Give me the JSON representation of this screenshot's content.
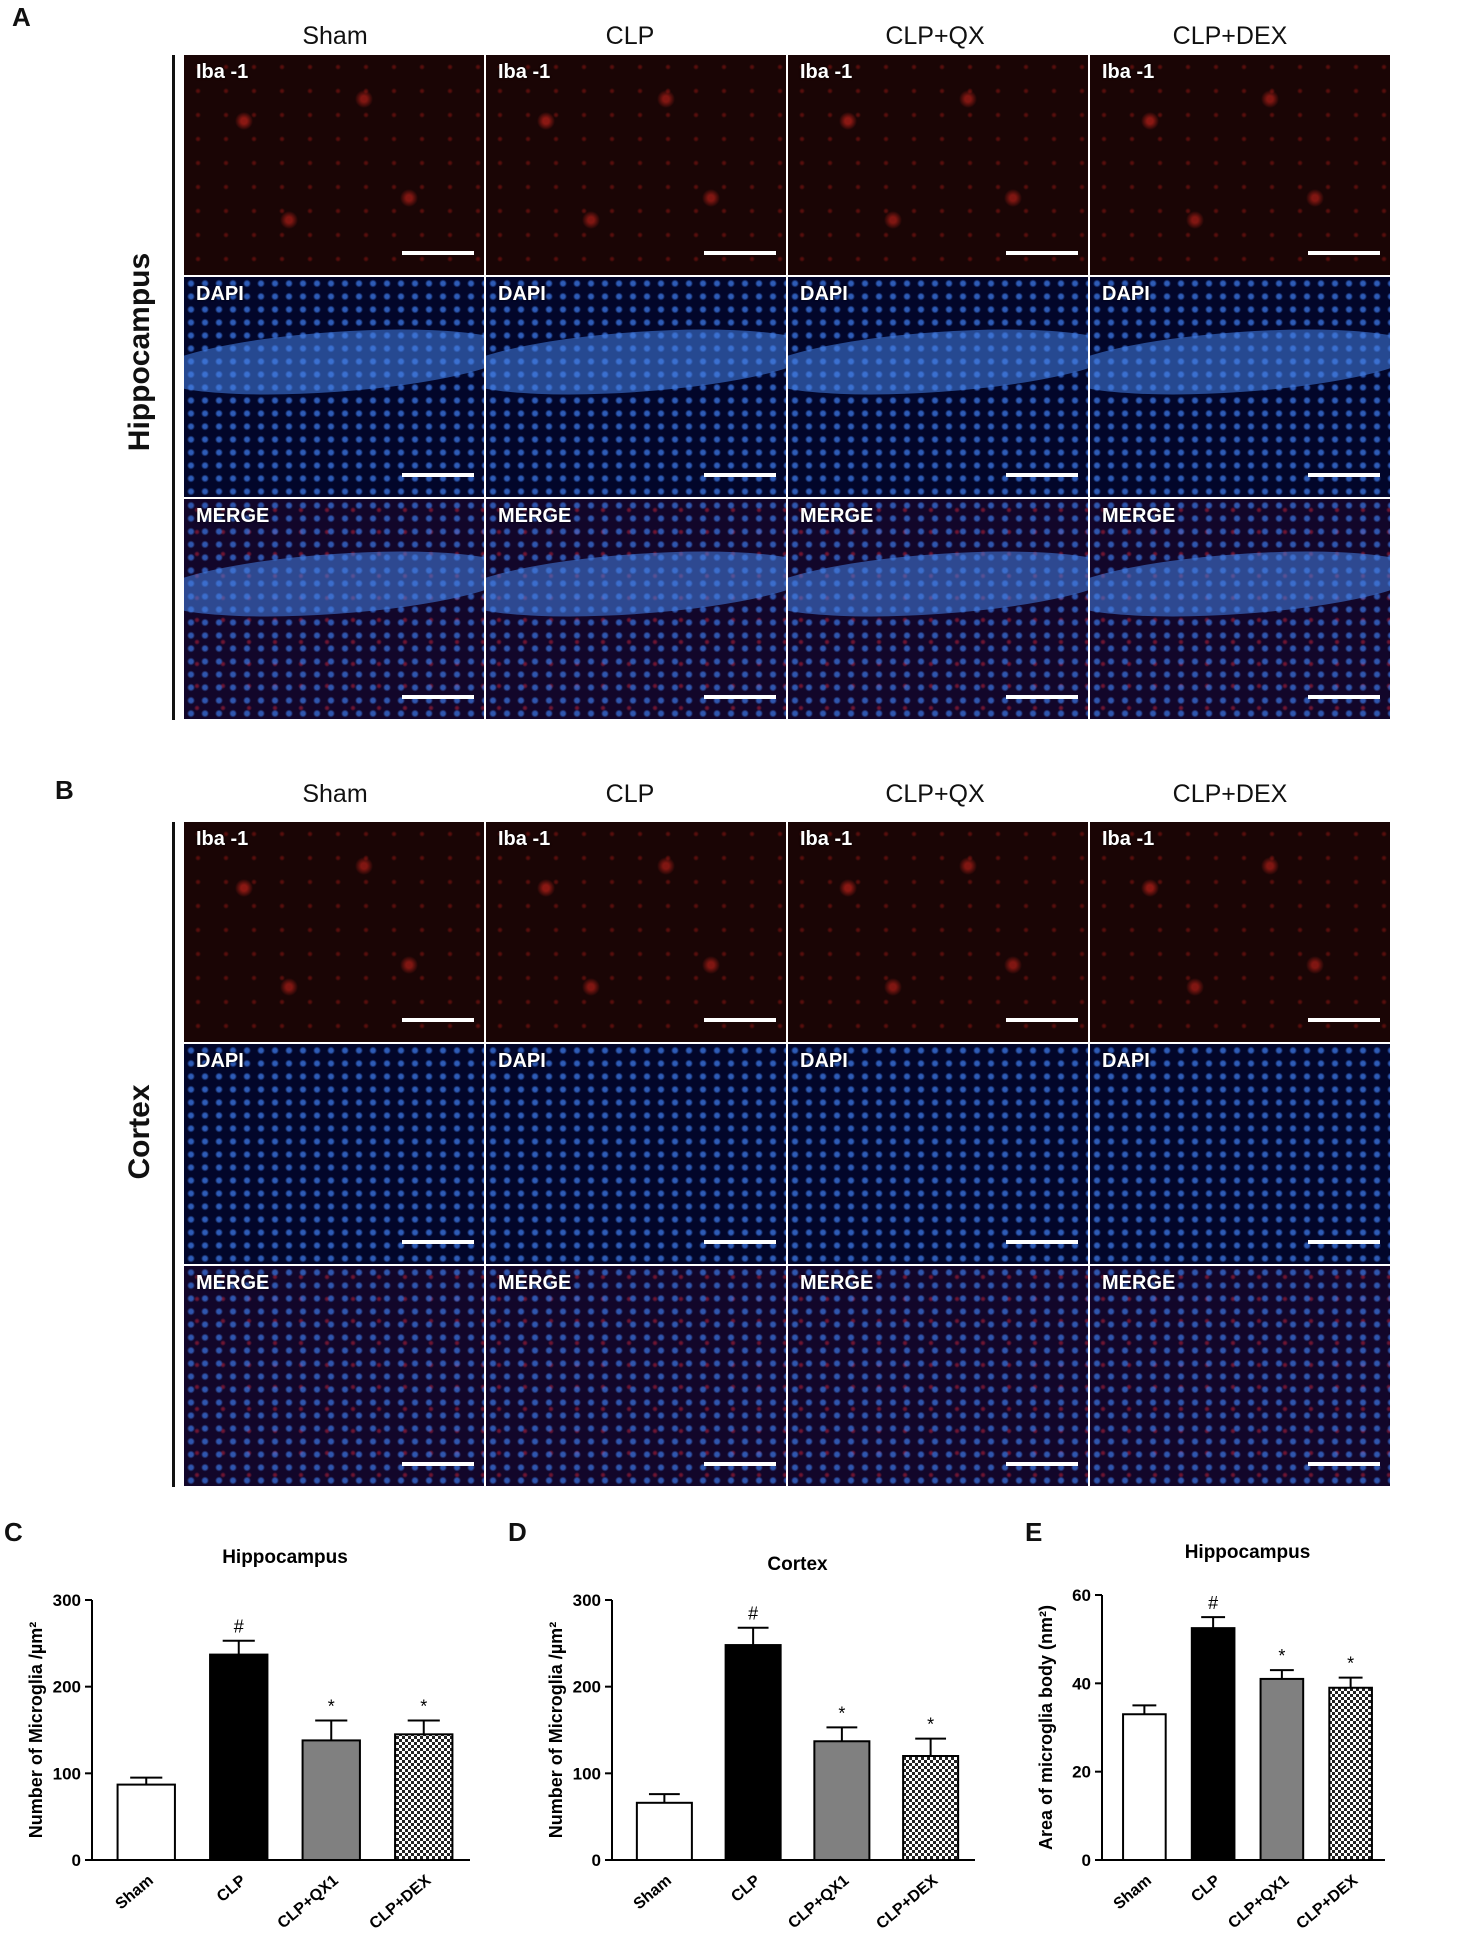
{
  "panels": {
    "a": {
      "letter": "A",
      "row_title": "Hippocampus"
    },
    "b": {
      "letter": "B",
      "row_title": "Cortex"
    },
    "c": {
      "letter": "C"
    },
    "d": {
      "letter": "D"
    },
    "e": {
      "letter": "E"
    }
  },
  "columns": [
    "Sham",
    "CLP",
    "CLP+QX",
    "CLP+DEX"
  ],
  "stain_labels": {
    "iba": "Iba -1",
    "dapi": "DAPI",
    "merge": "MERGE"
  },
  "chart_data": [
    {
      "type": "bar",
      "title": "Hippocampus",
      "ylabel": "Number of Microglia /µm²",
      "categories": [
        "Sham",
        "CLP",
        "CLP+QX1",
        "CLP+DEX"
      ],
      "values": [
        87,
        237,
        138,
        145
      ],
      "errors": [
        8,
        16,
        23,
        16
      ],
      "annotations": [
        "",
        "#",
        "*",
        "*"
      ],
      "fills": [
        "#ffffff",
        "#000000",
        "#808080",
        "checker"
      ],
      "ylim": [
        0,
        300
      ],
      "yticks": [
        0,
        100,
        200,
        300
      ]
    },
    {
      "type": "bar",
      "title": "Cortex",
      "ylabel": "Number of Microglia /µm²",
      "categories": [
        "Sham",
        "CLP",
        "CLP+QX1",
        "CLP+DEX"
      ],
      "values": [
        66,
        248,
        137,
        120
      ],
      "errors": [
        10,
        20,
        16,
        20
      ],
      "annotations": [
        "",
        "#",
        "*",
        "*"
      ],
      "fills": [
        "#ffffff",
        "#000000",
        "#808080",
        "checker"
      ],
      "ylim": [
        0,
        300
      ],
      "yticks": [
        0,
        100,
        200,
        300
      ]
    },
    {
      "type": "bar",
      "title": "Hippocampus",
      "ylabel": "Area of microglia body (nm²)",
      "categories": [
        "Sham",
        "CLP",
        "CLP+QX1",
        "CLP+DEX"
      ],
      "values": [
        33,
        52.5,
        41,
        39
      ],
      "errors": [
        2,
        2.5,
        2,
        2.3
      ],
      "annotations": [
        "",
        "#",
        "*",
        "*"
      ],
      "fills": [
        "#ffffff",
        "#000000",
        "#808080",
        "checker"
      ],
      "ylim": [
        0,
        60
      ],
      "yticks": [
        0,
        20,
        40,
        60
      ]
    }
  ]
}
